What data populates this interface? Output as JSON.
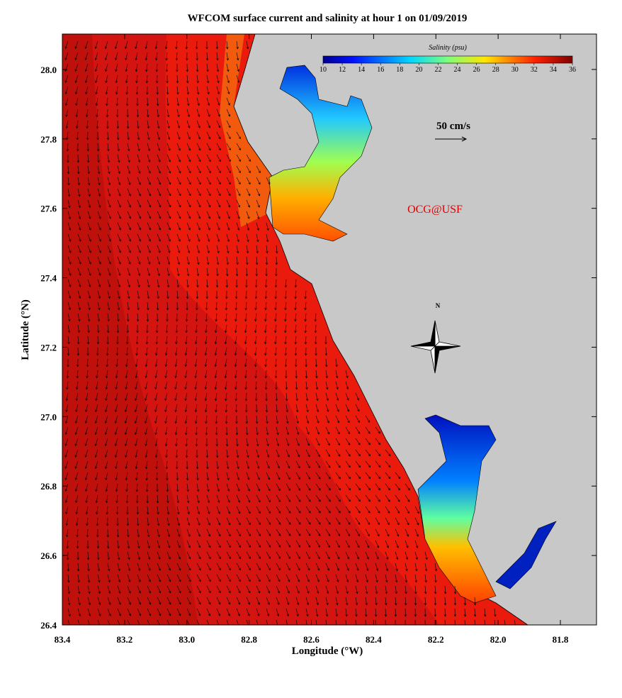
{
  "title": "WFCOM surface current and salinity at hour 1 on 01/09/2019",
  "map": {
    "xlabel": "Longitude (°W)",
    "ylabel": "Latitude (°N)",
    "xlim": [
      83.4,
      81.684
    ],
    "ylim": [
      26.4,
      28.102
    ],
    "xticks": [
      83.4,
      83.2,
      {
        "value": 83,
        "label": "83.0"
      },
      82.8,
      82.6,
      82.4,
      82.2,
      {
        "value": 82,
        "label": "82.0"
      },
      81.8
    ],
    "yticks": [
      26.4,
      26.6,
      26.8,
      {
        "value": 27,
        "label": "27.0"
      },
      27.2,
      27.4,
      27.6,
      27.8,
      {
        "value": 28,
        "label": "28.0"
      }
    ]
  },
  "colorbar": {
    "title": "Salinity (psu)",
    "lim": [
      10,
      36
    ],
    "ticks": [
      10,
      12,
      14,
      16,
      18,
      20,
      22,
      24,
      26,
      28,
      30,
      32,
      34,
      36
    ]
  },
  "annotations": {
    "scale": "50 cm/s",
    "credit": "OCG@USF",
    "north": "N"
  }
}
